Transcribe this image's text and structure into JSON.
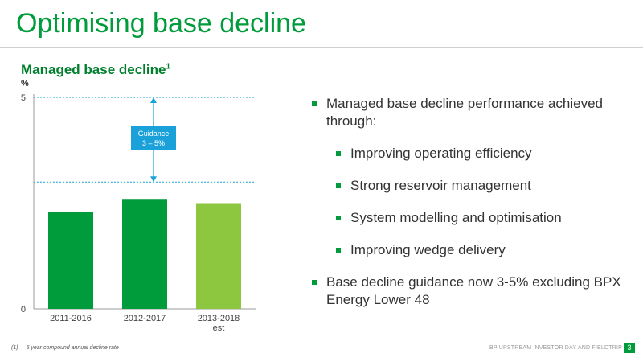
{
  "slide": {
    "title": "Optimising base decline",
    "chart_title": "Managed base decline",
    "chart_title_ref": "1",
    "unit": "%",
    "footnote_marker": "(1)",
    "footnote": "5 year compound annual decline rate",
    "footer": "BP UPSTREAM INVESTOR DAY AND FIELDTRIP",
    "page": "3"
  },
  "bullets": [
    {
      "text": "Managed base decline performance achieved through:",
      "level": 1
    },
    {
      "text": "Improving operating efficiency",
      "level": 2
    },
    {
      "text": "Strong reservoir management",
      "level": 2
    },
    {
      "text": "System modelling and optimisation",
      "level": 2
    },
    {
      "text": "Improving wedge delivery",
      "level": 2
    },
    {
      "text": "Base decline guidance now 3-5% excluding BPX Energy Lower 48",
      "level": 1
    }
  ],
  "chart_data": {
    "type": "bar",
    "categories": [
      "2011-2016",
      "2012-2017",
      "2013-2018 est"
    ],
    "values": [
      2.3,
      2.6,
      2.5
    ],
    "ylim": [
      0,
      5
    ],
    "yticks": [
      "0",
      "5"
    ],
    "bar_colors": [
      "#009b3a",
      "#009b3a",
      "#8dc63f"
    ],
    "guidance": {
      "label_line1": "Guidance",
      "label_line2": "3 – 5%",
      "low": 3,
      "high": 5,
      "color": "#1ba1d9"
    },
    "grid": false
  }
}
